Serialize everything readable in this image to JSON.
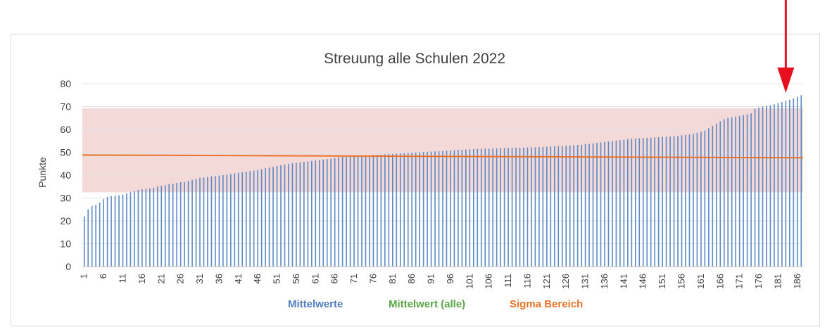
{
  "chart_data": {
    "type": "bar",
    "title": "Streuung alle Schulen 2022",
    "xlabel": "",
    "ylabel": "Punkte",
    "ylim": [
      0,
      80
    ],
    "yticks": [
      0,
      10,
      20,
      30,
      40,
      50,
      60,
      70,
      80
    ],
    "x_count": 187,
    "xtick_step": 5,
    "grid": "horizontal",
    "legend_position": "bottom",
    "series": [
      {
        "name": "Mittelwerte",
        "type": "bar",
        "color": "#4f7fbf",
        "values": [
          22,
          25,
          26.5,
          27,
          28,
          29.5,
          30.5,
          30.8,
          31,
          31.2,
          31.5,
          32,
          32.5,
          33,
          33.5,
          33.8,
          34,
          34.2,
          34.5,
          35,
          35.3,
          35.6,
          36,
          36.3,
          36.6,
          37,
          37,
          37.5,
          38,
          38.4,
          38.8,
          39,
          39.2,
          39.4,
          39.6,
          39.8,
          40,
          40.2,
          40.5,
          40.8,
          41,
          41.2,
          41.5,
          41.8,
          42,
          42.3,
          42.6,
          43,
          43.3,
          43.6,
          44,
          44.3,
          44.6,
          44.9,
          45.2,
          45.4,
          45.6,
          45.8,
          46,
          46.2,
          46.4,
          46.6,
          46.8,
          47,
          47.2,
          47.5,
          47.8,
          48,
          48.1,
          48.2,
          48.3,
          48.4,
          48.5,
          48.6,
          48.7,
          48.8,
          48.9,
          49,
          49.1,
          49.2,
          49.3,
          49.4,
          49.5,
          49.6,
          49.7,
          49.8,
          49.9,
          50,
          50.1,
          50.2,
          50.3,
          50.4,
          50.5,
          50.6,
          50.7,
          50.8,
          50.9,
          51,
          51.1,
          51.2,
          51.3,
          51.4,
          51.5,
          51.5,
          51.6,
          51.6,
          51.7,
          51.7,
          51.8,
          51.8,
          51.9,
          51.9,
          52,
          52,
          52.1,
          52.1,
          52.2,
          52.2,
          52.3,
          52.3,
          52.4,
          52.5,
          52.6,
          52.7,
          52.8,
          52.9,
          53,
          53.1,
          53.2,
          53.3,
          53.5,
          53.7,
          53.9,
          54.1,
          54.3,
          54.5,
          54.7,
          54.9,
          55.1,
          55.3,
          55.5,
          55.7,
          55.9,
          56,
          56.1,
          56.2,
          56.3,
          56.4,
          56.5,
          56.6,
          56.7,
          56.8,
          56.9,
          57,
          57.2,
          57.4,
          57.6,
          57.8,
          58,
          58.5,
          59,
          59.5,
          60.5,
          61.5,
          62.5,
          63.5,
          64.5,
          65,
          65.3,
          65.6,
          65.9,
          66.2,
          66.5,
          67,
          69,
          69.5,
          70,
          70.3,
          70.6,
          71,
          71.5,
          72,
          72.5,
          73,
          73.5,
          74.3,
          75
        ]
      },
      {
        "name": "Mittelwert (alle)",
        "type": "line",
        "color": "#e8742c",
        "legend_color": "#5aa548",
        "start": 48.8,
        "end": 47.6
      },
      {
        "name": "Sigma Bereich",
        "type": "band",
        "color": "#f4d9d9",
        "low": 32.5,
        "high": 69.3,
        "legend_color": "#e8742c"
      }
    ],
    "annotation": {
      "type": "arrow",
      "color": "#e8101e",
      "target_index": 182
    }
  }
}
